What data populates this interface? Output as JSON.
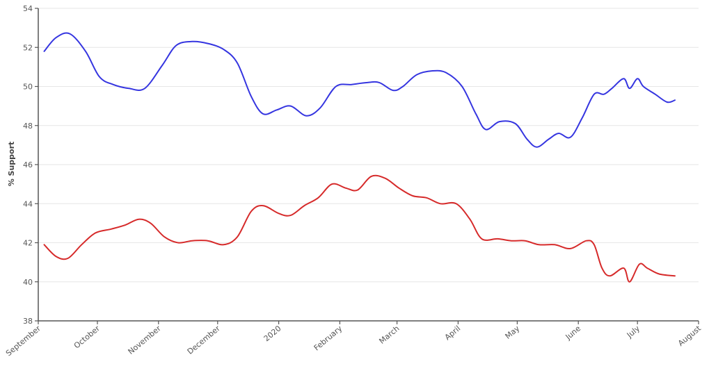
{
  "chart_data": {
    "type": "line",
    "title": "",
    "xlabel": "",
    "ylabel": "% Support",
    "ylim": [
      38,
      54
    ],
    "yticks": [
      38,
      40,
      42,
      44,
      46,
      48,
      50,
      52,
      54
    ],
    "xlim": [
      "2019-09-01",
      "2020-08-01"
    ],
    "xticks": [
      {
        "date": "2019-09-01",
        "label": "September"
      },
      {
        "date": "2019-10-01",
        "label": "October"
      },
      {
        "date": "2019-11-01",
        "label": "November"
      },
      {
        "date": "2019-12-01",
        "label": "December"
      },
      {
        "date": "2020-01-01",
        "label": "2020"
      },
      {
        "date": "2020-02-01",
        "label": "February"
      },
      {
        "date": "2020-03-01",
        "label": "March"
      },
      {
        "date": "2020-04-01",
        "label": "April"
      },
      {
        "date": "2020-05-01",
        "label": "May"
      },
      {
        "date": "2020-06-01",
        "label": "June"
      },
      {
        "date": "2020-07-01",
        "label": "July"
      },
      {
        "date": "2020-08-01",
        "label": "August"
      }
    ],
    "grid": true,
    "legend": "none",
    "series": [
      {
        "color": "#3535e0",
        "points": [
          [
            "2019-09-04",
            51.8
          ],
          [
            "2019-09-10",
            52.5
          ],
          [
            "2019-09-17",
            52.7
          ],
          [
            "2019-09-25",
            51.8
          ],
          [
            "2019-10-02",
            50.5
          ],
          [
            "2019-10-09",
            50.1
          ],
          [
            "2019-10-17",
            49.9
          ],
          [
            "2019-10-25",
            49.9
          ],
          [
            "2019-11-03",
            51.1
          ],
          [
            "2019-11-10",
            52.1
          ],
          [
            "2019-11-18",
            52.3
          ],
          [
            "2019-11-26",
            52.2
          ],
          [
            "2019-12-04",
            51.9
          ],
          [
            "2019-12-11",
            51.2
          ],
          [
            "2019-12-18",
            49.5
          ],
          [
            "2019-12-24",
            48.6
          ],
          [
            "2019-12-31",
            48.8
          ],
          [
            "2020-01-07",
            49.0
          ],
          [
            "2020-01-15",
            48.5
          ],
          [
            "2020-01-22",
            48.9
          ],
          [
            "2020-01-30",
            50.0
          ],
          [
            "2020-02-07",
            50.1
          ],
          [
            "2020-02-15",
            50.2
          ],
          [
            "2020-02-21",
            50.2
          ],
          [
            "2020-02-28",
            49.8
          ],
          [
            "2020-03-04",
            50.0
          ],
          [
            "2020-03-11",
            50.6
          ],
          [
            "2020-03-19",
            50.8
          ],
          [
            "2020-03-26",
            50.7
          ],
          [
            "2020-04-03",
            50.0
          ],
          [
            "2020-04-10",
            48.6
          ],
          [
            "2020-04-15",
            47.8
          ],
          [
            "2020-04-22",
            48.2
          ],
          [
            "2020-04-30",
            48.1
          ],
          [
            "2020-05-06",
            47.3
          ],
          [
            "2020-05-11",
            46.9
          ],
          [
            "2020-05-17",
            47.3
          ],
          [
            "2020-05-22",
            47.6
          ],
          [
            "2020-05-28",
            47.4
          ],
          [
            "2020-06-03",
            48.4
          ],
          [
            "2020-06-09",
            49.6
          ],
          [
            "2020-06-14",
            49.6
          ],
          [
            "2020-06-18",
            49.9
          ],
          [
            "2020-06-24",
            50.4
          ],
          [
            "2020-06-27",
            49.9
          ],
          [
            "2020-07-01",
            50.4
          ],
          [
            "2020-07-04",
            50.0
          ],
          [
            "2020-07-10",
            49.6
          ],
          [
            "2020-07-16",
            49.2
          ],
          [
            "2020-07-20",
            49.3
          ]
        ]
      },
      {
        "color": "#d62a2a",
        "points": [
          [
            "2019-09-04",
            41.9
          ],
          [
            "2019-09-10",
            41.3
          ],
          [
            "2019-09-16",
            41.2
          ],
          [
            "2019-09-23",
            41.9
          ],
          [
            "2019-09-30",
            42.5
          ],
          [
            "2019-10-08",
            42.7
          ],
          [
            "2019-10-15",
            42.9
          ],
          [
            "2019-10-22",
            43.2
          ],
          [
            "2019-10-28",
            43.0
          ],
          [
            "2019-11-04",
            42.3
          ],
          [
            "2019-11-11",
            42.0
          ],
          [
            "2019-11-18",
            42.1
          ],
          [
            "2019-11-26",
            42.1
          ],
          [
            "2019-12-04",
            41.9
          ],
          [
            "2019-12-11",
            42.3
          ],
          [
            "2019-12-18",
            43.6
          ],
          [
            "2019-12-24",
            43.9
          ],
          [
            "2020-01-01",
            43.5
          ],
          [
            "2020-01-07",
            43.4
          ],
          [
            "2020-01-14",
            43.9
          ],
          [
            "2020-01-21",
            44.3
          ],
          [
            "2020-01-28",
            45.0
          ],
          [
            "2020-02-04",
            44.8
          ],
          [
            "2020-02-10",
            44.7
          ],
          [
            "2020-02-17",
            45.4
          ],
          [
            "2020-02-24",
            45.3
          ],
          [
            "2020-03-02",
            44.8
          ],
          [
            "2020-03-09",
            44.4
          ],
          [
            "2020-03-16",
            44.3
          ],
          [
            "2020-03-23",
            44.0
          ],
          [
            "2020-03-31",
            44.0
          ],
          [
            "2020-04-07",
            43.2
          ],
          [
            "2020-04-13",
            42.2
          ],
          [
            "2020-04-21",
            42.2
          ],
          [
            "2020-04-28",
            42.1
          ],
          [
            "2020-05-05",
            42.1
          ],
          [
            "2020-05-12",
            41.9
          ],
          [
            "2020-05-20",
            41.9
          ],
          [
            "2020-05-28",
            41.7
          ],
          [
            "2020-06-05",
            42.1
          ],
          [
            "2020-06-09",
            41.9
          ],
          [
            "2020-06-13",
            40.7
          ],
          [
            "2020-06-17",
            40.3
          ],
          [
            "2020-06-24",
            40.7
          ],
          [
            "2020-06-27",
            40.0
          ],
          [
            "2020-07-02",
            40.9
          ],
          [
            "2020-07-06",
            40.7
          ],
          [
            "2020-07-12",
            40.4
          ],
          [
            "2020-07-20",
            40.3
          ]
        ]
      }
    ]
  }
}
